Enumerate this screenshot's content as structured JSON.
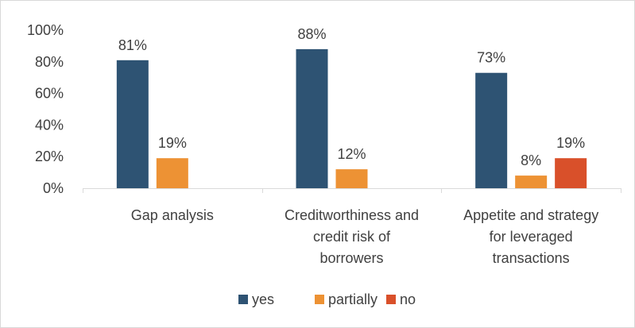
{
  "chart_data": {
    "type": "bar",
    "categories": [
      [
        "Gap analysis"
      ],
      [
        "Creditworthiness and",
        "credit risk of",
        "borrowers"
      ],
      [
        "Appetite and strategy",
        "for leveraged",
        "transactions"
      ]
    ],
    "series": [
      {
        "name": "yes",
        "values": [
          81,
          88,
          73
        ],
        "labels": [
          "81%",
          "88%",
          "73%"
        ],
        "color": "#2e5373"
      },
      {
        "name": "partially",
        "values": [
          19,
          12,
          8
        ],
        "labels": [
          "19%",
          "12%",
          "8%"
        ],
        "color": "#ed9234"
      },
      {
        "name": "no",
        "values": [
          null,
          null,
          19
        ],
        "labels": [
          null,
          null,
          "19%"
        ],
        "color": "#d9502a"
      }
    ],
    "y_ticks": [
      "0%",
      "20%",
      "40%",
      "60%",
      "80%",
      "100%"
    ],
    "y_tick_values": [
      0,
      20,
      40,
      60,
      80,
      100
    ],
    "ylim": [
      0,
      100
    ],
    "grid": false,
    "legend_position": "bottom",
    "axis_color": "#d9d9d9"
  }
}
